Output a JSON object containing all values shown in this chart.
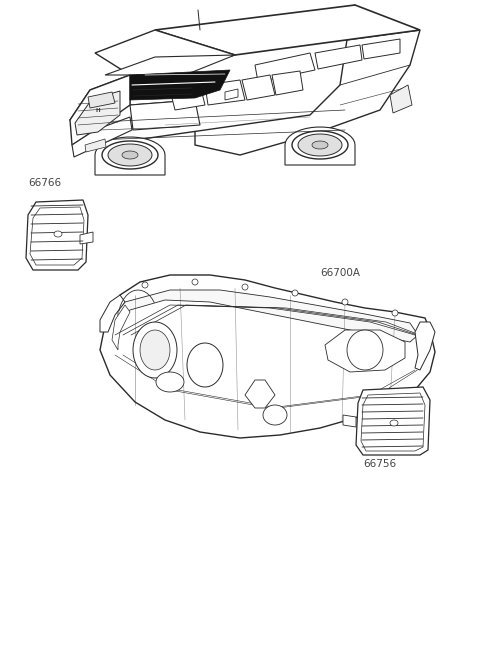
{
  "background_color": "#ffffff",
  "label_66766": "66766",
  "label_66700A": "66700A",
  "label_66756": "66756",
  "line_color": "#2a2a2a",
  "label_fontsize": 7.5,
  "figsize": [
    4.8,
    6.65
  ],
  "dpi": 100
}
